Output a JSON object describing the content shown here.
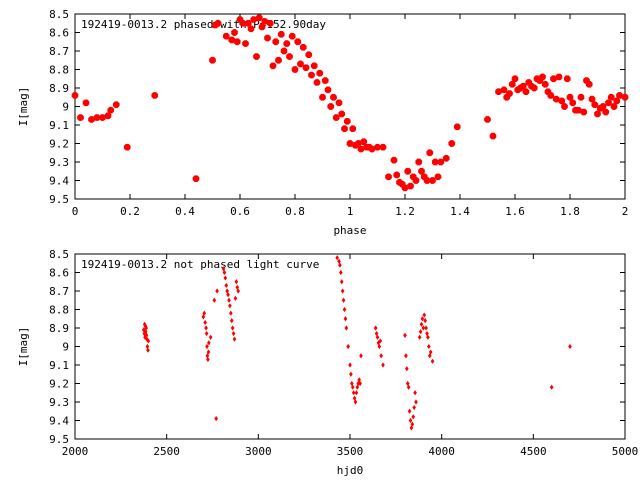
{
  "chart_data": [
    {
      "type": "scatter",
      "title": "192419-0013.2 phased with P=152.90day",
      "xlabel": "phase",
      "ylabel": "I[mag]",
      "xlim": [
        0,
        2
      ],
      "ylim": [
        9.5,
        8.5
      ],
      "y_inverted": true,
      "grid": false,
      "marker": "star",
      "color": "#ff0000",
      "xticks": [
        "0",
        "0.2",
        "0.4",
        "0.6",
        "0.8",
        "1",
        "1.2",
        "1.4",
        "1.6",
        "1.8",
        "2"
      ],
      "yticks": [
        "8.5",
        "8.6",
        "8.7",
        "8.8",
        "8.9",
        "9",
        "9.1",
        "9.2",
        "9.3",
        "9.4",
        "9.5"
      ],
      "series": [
        {
          "x": [
            0.0,
            0.02,
            0.04,
            0.06,
            0.08,
            0.1,
            0.12,
            0.13,
            0.15,
            0.19,
            0.29,
            0.44,
            0.5,
            0.51,
            0.52,
            0.55,
            0.57,
            0.58,
            0.59,
            0.6,
            0.61,
            0.62,
            0.63,
            0.64,
            0.65,
            0.66,
            0.67,
            0.68,
            0.69,
            0.7,
            0.71,
            0.72,
            0.73,
            0.74,
            0.75,
            0.76,
            0.77,
            0.78,
            0.79,
            0.8,
            0.81,
            0.82,
            0.83,
            0.84,
            0.85,
            0.86,
            0.87,
            0.88,
            0.89,
            0.9,
            0.91,
            0.92,
            0.93,
            0.94,
            0.95,
            0.96,
            0.97,
            0.98,
            0.99,
            1.0,
            1.01,
            1.02,
            1.03,
            1.04,
            1.05,
            1.06,
            1.07,
            1.08,
            1.1,
            1.12,
            1.14,
            1.16,
            1.17,
            1.18,
            1.19,
            1.2,
            1.21,
            1.22,
            1.23,
            1.24,
            1.25,
            1.26,
            1.27,
            1.28,
            1.29,
            1.3,
            1.31,
            1.32,
            1.33,
            1.35,
            1.37,
            1.39,
            1.5,
            1.52,
            1.54,
            1.56,
            1.57,
            1.58,
            1.59,
            1.6,
            1.61,
            1.62,
            1.63,
            1.64,
            1.65,
            1.66,
            1.67,
            1.68,
            1.69,
            1.7,
            1.71,
            1.72,
            1.73,
            1.74,
            1.75,
            1.76,
            1.77,
            1.78,
            1.79,
            1.8,
            1.81,
            1.82,
            1.83,
            1.84,
            1.85,
            1.86,
            1.87,
            1.88,
            1.89,
            1.9,
            1.91,
            1.92,
            1.93,
            1.94,
            1.95,
            1.96,
            1.97,
            1.98,
            2.0
          ],
          "y": [
            8.94,
            9.06,
            8.98,
            9.07,
            9.06,
            9.06,
            9.05,
            9.02,
            8.99,
            9.22,
            8.94,
            9.39,
            8.75,
            8.56,
            8.55,
            8.62,
            8.64,
            8.6,
            8.65,
            8.53,
            8.55,
            8.66,
            8.55,
            8.58,
            8.53,
            8.73,
            8.52,
            8.57,
            8.54,
            8.63,
            8.55,
            8.78,
            8.65,
            8.75,
            8.61,
            8.7,
            8.66,
            8.73,
            8.62,
            8.8,
            8.65,
            8.77,
            8.68,
            8.79,
            8.72,
            8.83,
            8.78,
            8.87,
            8.82,
            8.95,
            8.86,
            8.91,
            9.0,
            8.95,
            9.06,
            8.98,
            9.04,
            9.12,
            9.08,
            9.2,
            9.12,
            9.21,
            9.2,
            9.23,
            9.19,
            9.22,
            9.22,
            9.23,
            9.22,
            9.22,
            9.38,
            9.29,
            9.37,
            9.41,
            9.42,
            9.44,
            9.35,
            9.43,
            9.38,
            9.4,
            9.3,
            9.35,
            9.38,
            9.4,
            9.25,
            9.4,
            9.3,
            9.38,
            9.3,
            9.28,
            9.2,
            9.11,
            9.07,
            9.16,
            8.92,
            8.91,
            8.95,
            8.93,
            8.88,
            8.85,
            8.91,
            8.9,
            8.89,
            8.92,
            8.87,
            8.89,
            8.9,
            8.85,
            8.86,
            8.84,
            8.88,
            8.92,
            8.94,
            8.85,
            8.96,
            8.84,
            8.97,
            9.0,
            8.85,
            8.95,
            8.98,
            9.02,
            9.02,
            8.95,
            9.03,
            8.86,
            8.88,
            8.96,
            8.99,
            9.04,
            9.01,
            9.0,
            9.03,
            8.98,
            8.95,
            9.0,
            8.97,
            8.94,
            8.95
          ]
        }
      ]
    },
    {
      "type": "scatter",
      "title": "192419-0013.2 not phased light curve",
      "xlabel": "hjd0",
      "ylabel": "I[mag]",
      "xlim": [
        2000,
        5000
      ],
      "ylim": [
        9.5,
        8.5
      ],
      "y_inverted": true,
      "grid": false,
      "marker": "diamond",
      "color": "#ff0000",
      "xticks": [
        "2000",
        "2500",
        "3000",
        "3500",
        "4000",
        "4500",
        "5000"
      ],
      "yticks": [
        "8.5",
        "8.6",
        "8.7",
        "8.8",
        "8.9",
        "9",
        "9.1",
        "9.2",
        "9.3",
        "9.4",
        "9.5"
      ],
      "series": [
        {
          "x": [
            2375,
            2378,
            2380,
            2382,
            2384,
            2386,
            2388,
            2390,
            2392,
            2395,
            2398,
            2400,
            2700,
            2705,
            2710,
            2715,
            2718,
            2720,
            2722,
            2725,
            2728,
            2730,
            2740,
            2760,
            2770,
            2775,
            2810,
            2815,
            2820,
            2825,
            2830,
            2835,
            2840,
            2845,
            2850,
            2855,
            2860,
            2865,
            2870,
            2875,
            2880,
            2885,
            2890,
            3430,
            3440,
            3445,
            3450,
            3455,
            3460,
            3465,
            3470,
            3475,
            3480,
            3490,
            3500,
            3505,
            3510,
            3515,
            3520,
            3525,
            3530,
            3535,
            3540,
            3545,
            3550,
            3555,
            3560,
            3640,
            3645,
            3650,
            3655,
            3660,
            3665,
            3670,
            3680,
            3800,
            3805,
            3810,
            3815,
            3820,
            3825,
            3830,
            3835,
            3840,
            3845,
            3850,
            3855,
            3860,
            3880,
            3885,
            3890,
            3895,
            3900,
            3905,
            3910,
            3915,
            3920,
            3925,
            3930,
            3935,
            3940,
            3950,
            4600,
            4700
          ],
          "y": [
            8.91,
            8.93,
            8.88,
            8.95,
            8.89,
            8.92,
            8.9,
            8.94,
            8.96,
            9.0,
            9.02,
            8.97,
            8.84,
            8.82,
            8.87,
            8.9,
            8.93,
            9.0,
            9.05,
            9.07,
            9.03,
            8.98,
            8.95,
            8.75,
            9.39,
            8.7,
            8.58,
            8.6,
            8.63,
            8.67,
            8.7,
            8.72,
            8.75,
            8.78,
            8.82,
            8.86,
            8.9,
            8.93,
            8.96,
            8.74,
            8.65,
            8.68,
            8.7,
            8.52,
            8.54,
            8.56,
            8.6,
            8.65,
            8.7,
            8.75,
            8.8,
            8.85,
            8.9,
            9.0,
            9.1,
            9.15,
            9.2,
            9.22,
            9.25,
            9.28,
            9.3,
            9.25,
            9.22,
            9.2,
            9.18,
            9.2,
            9.05,
            8.9,
            8.93,
            8.95,
            8.98,
            9.0,
            8.97,
            9.05,
            9.1,
            8.94,
            9.05,
            9.12,
            9.2,
            9.22,
            9.35,
            9.4,
            9.44,
            9.42,
            9.38,
            9.33,
            9.25,
            9.3,
            8.95,
            8.92,
            8.88,
            8.85,
            8.9,
            8.83,
            8.86,
            8.9,
            8.93,
            8.95,
            9.0,
            9.05,
            9.03,
            9.08,
            9.22,
            9.0
          ]
        }
      ]
    }
  ]
}
